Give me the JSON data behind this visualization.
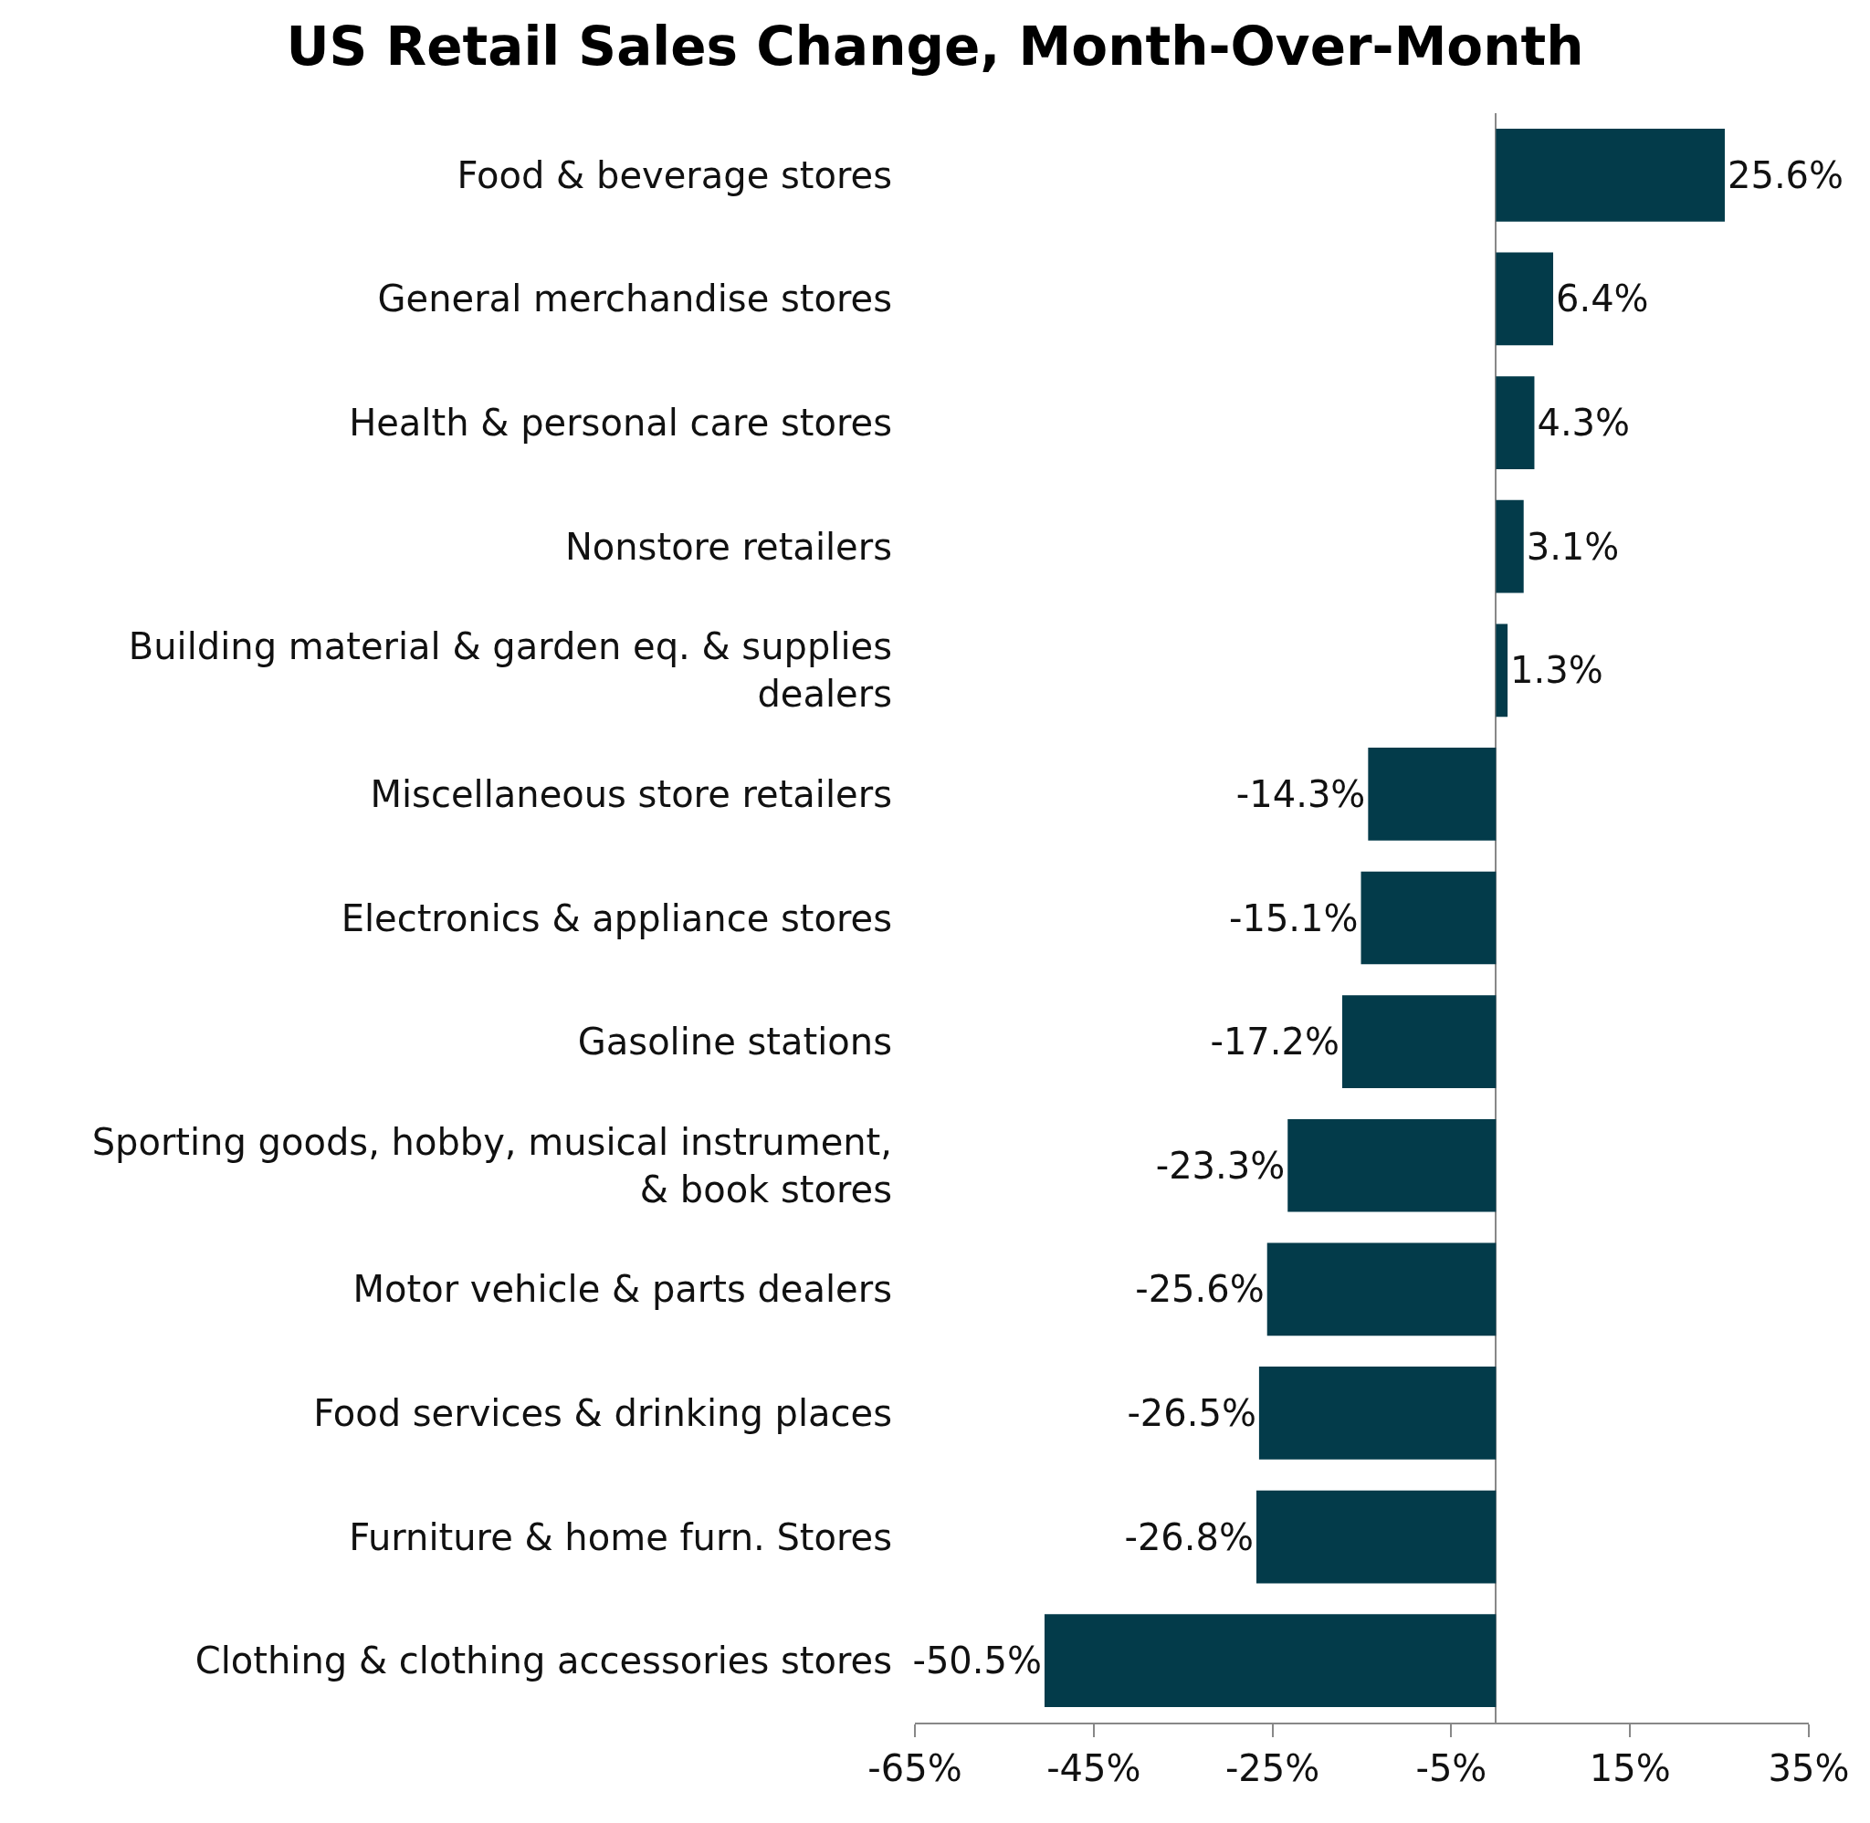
{
  "chart_data": {
    "type": "bar",
    "orientation": "horizontal",
    "title": "US Retail Sales Change, Month-Over-Month",
    "categories": [
      "Food & beverage stores",
      "General merchandise stores",
      "Health & personal care stores",
      "Nonstore retailers",
      "Building material & garden eq. & supplies dealers",
      "Miscellaneous store retailers",
      "Electronics & appliance stores",
      "Gasoline stations",
      "Sporting goods, hobby, musical instrument, & book stores",
      "Motor vehicle & parts dealers",
      "Food services & drinking places",
      "Furniture & home furn. Stores",
      "Clothing & clothing accessories stores"
    ],
    "values": [
      25.6,
      6.4,
      4.3,
      3.1,
      1.3,
      -14.3,
      -15.1,
      -17.2,
      -23.3,
      -25.6,
      -26.5,
      -26.8,
      -50.5
    ],
    "value_labels": [
      "25.6%",
      "6.4%",
      "4.3%",
      "3.1%",
      "1.3%",
      "-14.3%",
      "-15.1%",
      "-17.2%",
      "-23.3%",
      "-25.6%",
      "-26.5%",
      "-26.8%",
      "-50.5%"
    ],
    "color": "#033b4a",
    "xlim": [
      -65,
      35
    ],
    "xticks": [
      {
        "value": -65,
        "label": "-65%"
      },
      {
        "value": -45,
        "label": "-45%"
      },
      {
        "value": -25,
        "label": "-25%"
      },
      {
        "value": -5,
        "label": "-5%"
      },
      {
        "value": 15,
        "label": "15%"
      },
      {
        "value": 35,
        "label": "35%"
      }
    ],
    "tick_labels": true
  }
}
